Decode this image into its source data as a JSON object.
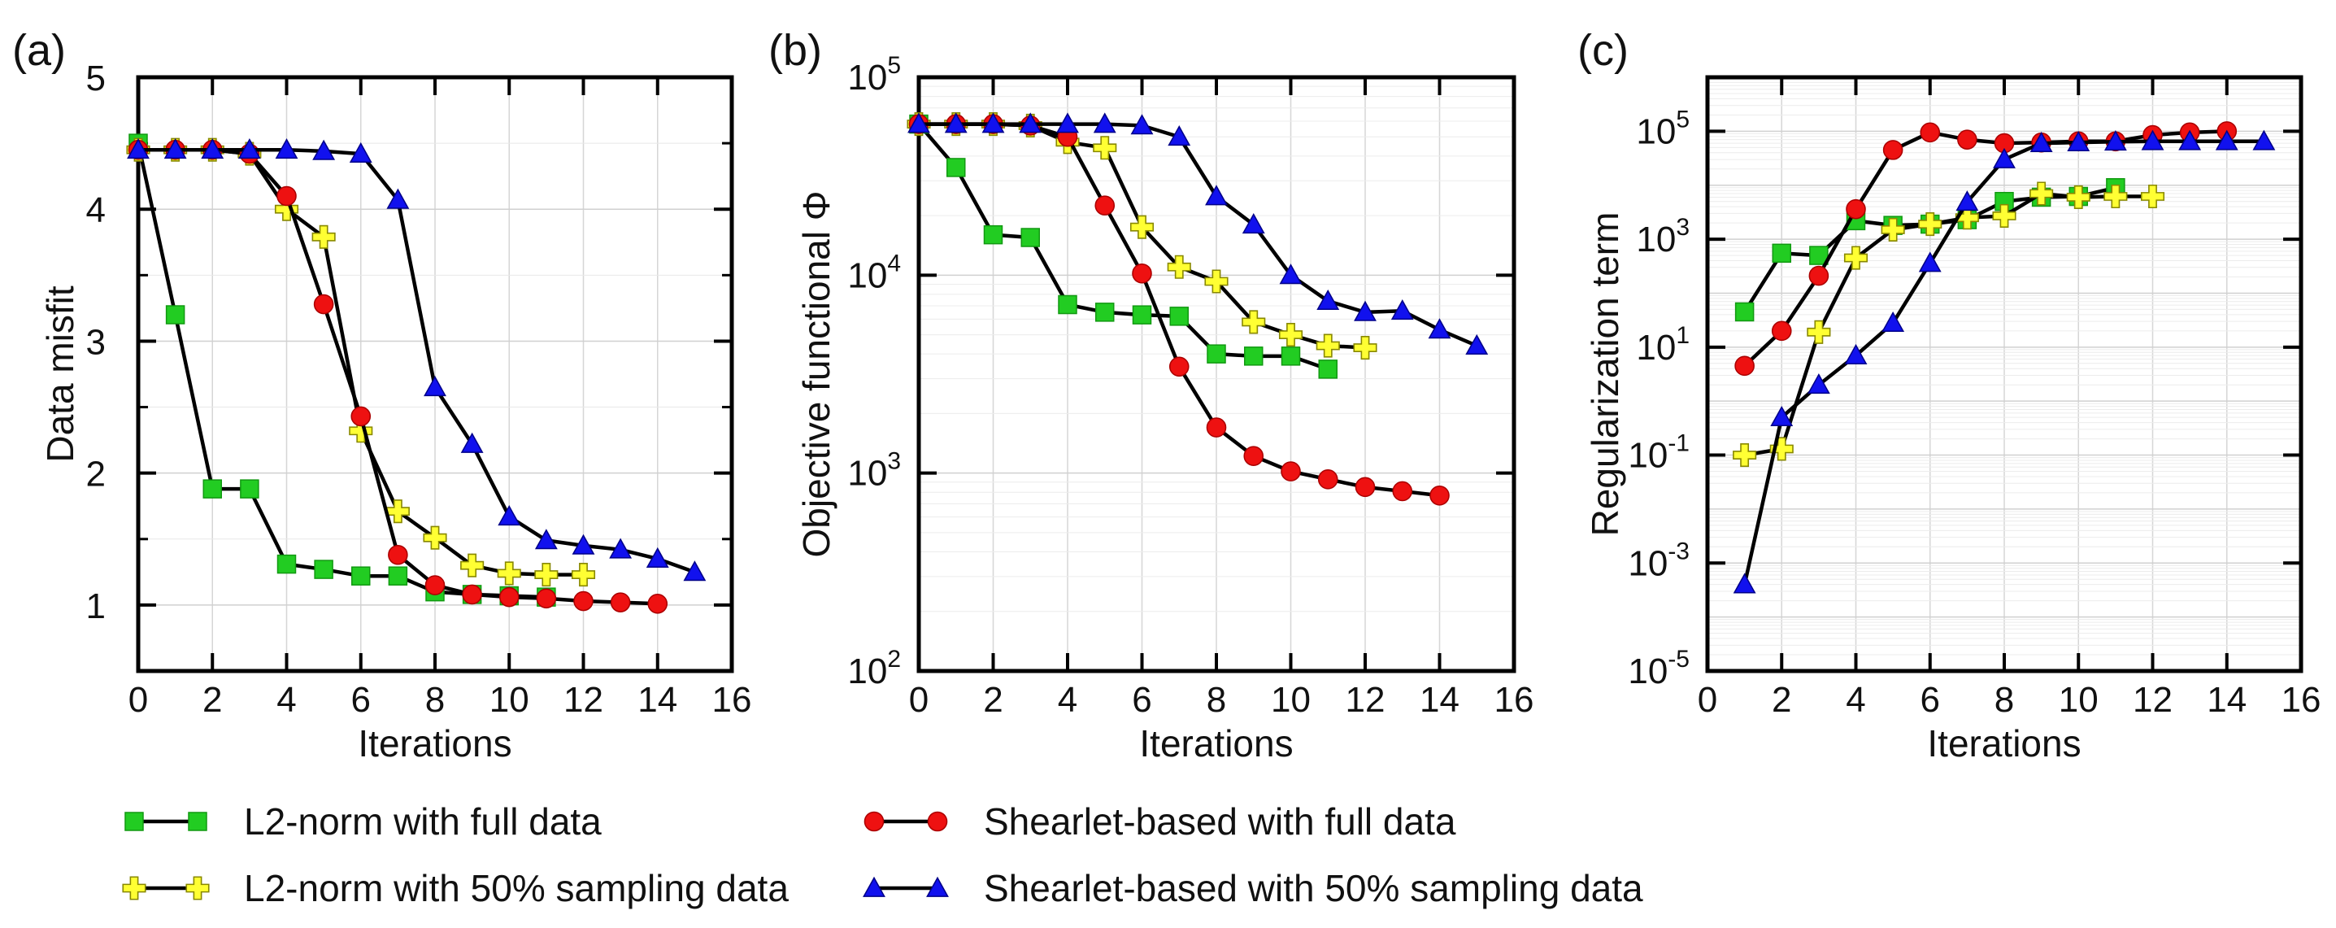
{
  "figure": {
    "legend": [
      {
        "key": "l2_full",
        "label": "L2-norm with full data"
      },
      {
        "key": "sh_full",
        "label": "Shearlet-based with full data"
      },
      {
        "key": "l2_50",
        "label": "L2-norm with 50% sampling data"
      },
      {
        "key": "sh_50",
        "label": "Shearlet-based with 50% sampling data"
      }
    ]
  },
  "styles": {
    "l2_full": {
      "marker": "square",
      "fill": "#22cc22",
      "stroke": "#119911"
    },
    "sh_full": {
      "marker": "circle",
      "fill": "#ee1111",
      "stroke": "#aa0000"
    },
    "l2_50": {
      "marker": "plus",
      "fill": "#ffff33",
      "stroke": "#888800"
    },
    "sh_50": {
      "marker": "triangle",
      "fill": "#1111ee",
      "stroke": "#000088"
    },
    "line_color": "#000000"
  },
  "chart_data": [
    {
      "type": "line",
      "panel_label": "(a)",
      "title": "",
      "xlabel": "Iterations",
      "ylabel": "Data misfit",
      "yscale": "linear",
      "xlim": [
        0,
        16
      ],
      "ylim": [
        0.5,
        5
      ],
      "xticks": [
        "0",
        "2",
        "4",
        "6",
        "8",
        "10",
        "12",
        "14",
        "16"
      ],
      "yticks": [
        {
          "v": 1,
          "label": "1"
        },
        {
          "v": 2,
          "label": "2"
        },
        {
          "v": 3,
          "label": "3"
        },
        {
          "v": 4,
          "label": "4"
        },
        {
          "v": 5,
          "label": "5"
        }
      ],
      "grid": true,
      "series": [
        {
          "key": "l2_full",
          "name": "L2-norm with full data",
          "x": [
            0,
            1,
            2,
            3,
            4,
            5,
            6,
            7,
            8,
            9,
            10,
            11
          ],
          "y": [
            4.5,
            3.2,
            1.88,
            1.88,
            1.31,
            1.27,
            1.22,
            1.22,
            1.1,
            1.08,
            1.07,
            1.06
          ]
        },
        {
          "key": "l2_50",
          "name": "L2-norm with 50% sampling data",
          "x": [
            0,
            1,
            2,
            3,
            4,
            5,
            6,
            7,
            8,
            9,
            10,
            11,
            12
          ],
          "y": [
            4.45,
            4.45,
            4.45,
            4.42,
            4.0,
            3.79,
            2.32,
            1.71,
            1.51,
            1.3,
            1.24,
            1.23,
            1.23
          ]
        },
        {
          "key": "sh_full",
          "name": "Shearlet-based with full data",
          "x": [
            0,
            1,
            2,
            3,
            4,
            5,
            6,
            7,
            8,
            9,
            10,
            11,
            12,
            13,
            14
          ],
          "y": [
            4.45,
            4.45,
            4.45,
            4.42,
            4.1,
            3.28,
            2.43,
            1.38,
            1.15,
            1.08,
            1.06,
            1.05,
            1.03,
            1.02,
            1.01
          ]
        },
        {
          "key": "sh_50",
          "name": "Shearlet-based with 50% sampling data",
          "x": [
            0,
            1,
            2,
            3,
            4,
            5,
            6,
            7,
            8,
            9,
            10,
            11,
            12,
            13,
            14,
            15
          ],
          "y": [
            4.45,
            4.45,
            4.45,
            4.45,
            4.45,
            4.44,
            4.42,
            4.07,
            2.65,
            2.22,
            1.67,
            1.49,
            1.45,
            1.42,
            1.35,
            1.25
          ]
        }
      ]
    },
    {
      "type": "line",
      "panel_label": "(b)",
      "title": "",
      "xlabel": "Iterations",
      "ylabel": "Objective functional Φ",
      "yscale": "log",
      "xlim": [
        0,
        16
      ],
      "ylim": [
        100,
        100000
      ],
      "xticks": [
        "0",
        "2",
        "4",
        "6",
        "8",
        "10",
        "12",
        "14",
        "16"
      ],
      "yticks": [
        {
          "v": 100,
          "base": "10",
          "exp": "2"
        },
        {
          "v": 1000,
          "base": "10",
          "exp": "3"
        },
        {
          "v": 10000,
          "base": "10",
          "exp": "4"
        },
        {
          "v": 100000,
          "base": "10",
          "exp": "5"
        }
      ],
      "grid": true,
      "series": [
        {
          "key": "l2_full",
          "name": "L2-norm with full data",
          "x": [
            0,
            1,
            2,
            3,
            4,
            5,
            6,
            7,
            8,
            9,
            10,
            11
          ],
          "y": [
            58000,
            35000,
            16000,
            15500,
            7100,
            6500,
            6300,
            6200,
            4000,
            3900,
            3900,
            3350
          ]
        },
        {
          "key": "l2_50",
          "name": "L2-norm with 50% sampling data",
          "x": [
            0,
            1,
            2,
            3,
            4,
            5,
            6,
            7,
            8,
            9,
            10,
            11,
            12
          ],
          "y": [
            58000,
            58000,
            58000,
            57000,
            47000,
            44000,
            17500,
            11000,
            9300,
            5800,
            5000,
            4400,
            4300
          ]
        },
        {
          "key": "sh_full",
          "name": "Shearlet-based with full data",
          "x": [
            0,
            1,
            2,
            3,
            4,
            5,
            6,
            7,
            8,
            9,
            10,
            11,
            12,
            13,
            14
          ],
          "y": [
            58000,
            58000,
            58000,
            57000,
            50000,
            22500,
            10200,
            3450,
            1700,
            1220,
            1020,
            930,
            850,
            810,
            770
          ]
        },
        {
          "key": "sh_50",
          "name": "Shearlet-based with 50% sampling data",
          "x": [
            0,
            1,
            2,
            3,
            4,
            5,
            6,
            7,
            8,
            9,
            10,
            11,
            12,
            13,
            14,
            15
          ],
          "y": [
            58000,
            58000,
            58000,
            58000,
            58000,
            58000,
            57000,
            50000,
            25000,
            18000,
            10000,
            7400,
            6500,
            6600,
            5300,
            4400
          ]
        }
      ]
    },
    {
      "type": "line",
      "panel_label": "(c)",
      "title": "",
      "xlabel": "Iterations",
      "ylabel": "Regularization term",
      "yscale": "log",
      "xlim": [
        0,
        16
      ],
      "ylim": [
        1e-05,
        1000000
      ],
      "xticks": [
        "0",
        "2",
        "4",
        "6",
        "8",
        "10",
        "12",
        "14",
        "16"
      ],
      "yticks": [
        {
          "v": 1e-05,
          "base": "10",
          "exp": "-5"
        },
        {
          "v": 0.001,
          "base": "10",
          "exp": "-3"
        },
        {
          "v": 0.1,
          "base": "10",
          "exp": "-1"
        },
        {
          "v": 10,
          "base": "10",
          "exp": "1"
        },
        {
          "v": 1000,
          "base": "10",
          "exp": "3"
        },
        {
          "v": 100000,
          "base": "10",
          "exp": "5"
        }
      ],
      "grid": true,
      "series": [
        {
          "key": "l2_full",
          "name": "L2-norm with full data",
          "x": [
            1,
            2,
            3,
            4,
            5,
            6,
            7,
            8,
            9,
            10,
            11
          ],
          "y": [
            45,
            550,
            500,
            2200,
            1800,
            1900,
            2300,
            5000,
            6000,
            6200,
            9000
          ]
        },
        {
          "key": "l2_50",
          "name": "L2-norm with 50% sampling data",
          "x": [
            1,
            2,
            3,
            4,
            5,
            6,
            7,
            8,
            9,
            10,
            11,
            12
          ],
          "y": [
            0.1,
            0.13,
            19,
            450,
            1500,
            1900,
            2500,
            2700,
            7000,
            6000,
            6200,
            6200
          ]
        },
        {
          "key": "sh_full",
          "name": "Shearlet-based with full data",
          "x": [
            1,
            2,
            3,
            4,
            5,
            6,
            7,
            8,
            9,
            10,
            11,
            12,
            13,
            14
          ],
          "y": [
            4.5,
            20,
            210,
            3600,
            45000,
            95000,
            70000,
            60000,
            62000,
            65000,
            65000,
            85000,
            95000,
            100000
          ]
        },
        {
          "key": "sh_50",
          "name": "Shearlet-based with 50% sampling data",
          "x": [
            1,
            2,
            3,
            4,
            5,
            6,
            7,
            8,
            9,
            10,
            11,
            12,
            13,
            14,
            15
          ],
          "y": [
            0.0004,
            0.5,
            2,
            7,
            28,
            360,
            4900,
            30000,
            60000,
            62000,
            64000,
            65000,
            65000,
            65000,
            65000
          ]
        }
      ]
    }
  ]
}
